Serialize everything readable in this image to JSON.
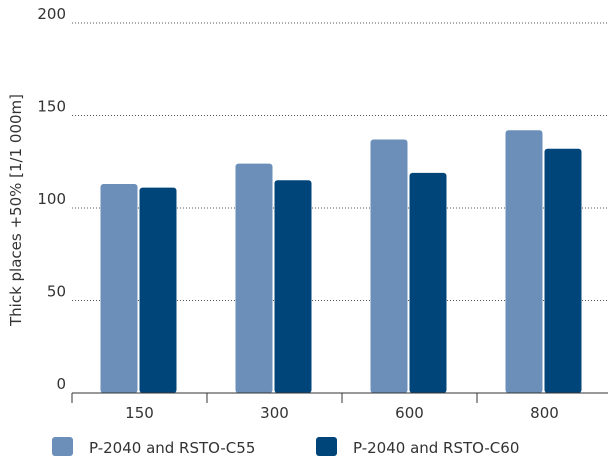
{
  "chart_data": {
    "type": "bar",
    "title": "",
    "xlabel": "",
    "ylabel": "Thick places +50% [1/1 000m]",
    "ylim": [
      0,
      200
    ],
    "yticks": [
      0,
      50,
      100,
      150,
      200
    ],
    "categories": [
      "150",
      "300",
      "600",
      "800"
    ],
    "series": [
      {
        "name": "P-2040 and RSTO-C55",
        "color": "#6b8fb8",
        "values": [
          113,
          124,
          137,
          142
        ]
      },
      {
        "name": "P-2040 and RSTO-C60",
        "color": "#00457a",
        "values": [
          111,
          115,
          119,
          132
        ]
      }
    ],
    "grid": "horizontal dotted",
    "legend_position": "bottom-left"
  }
}
